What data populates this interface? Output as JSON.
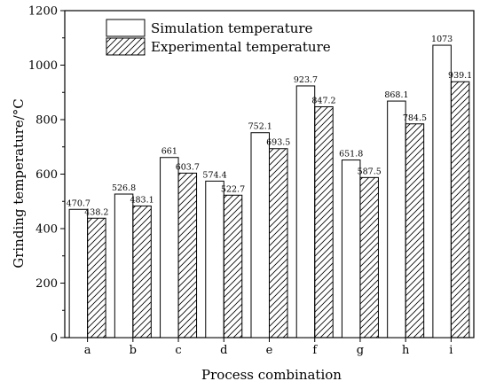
{
  "chart_data": {
    "type": "bar",
    "title": "",
    "xlabel": "Process combination",
    "ylabel": "Grinding temperature/°C",
    "categories": [
      "a",
      "b",
      "c",
      "d",
      "e",
      "f",
      "g",
      "h",
      "i"
    ],
    "ylim": [
      0,
      1200
    ],
    "yticks": [
      0,
      200,
      400,
      600,
      800,
      1000,
      1200
    ],
    "legend_position": "top-left",
    "grid": false,
    "series": [
      {
        "name": "Simulation temperature",
        "fill": "plain",
        "values": [
          470.7,
          526.8,
          661,
          574.4,
          752.1,
          923.7,
          651.8,
          868.1,
          1073
        ],
        "labels": [
          "470.7",
          "526.8",
          "661",
          "574.4",
          "752.1",
          "923.7",
          "651.8",
          "868.1",
          "1073"
        ]
      },
      {
        "name": "Experimental temperature",
        "fill": "hatched",
        "values": [
          438.2,
          483.1,
          603.7,
          522.7,
          693.5,
          847.2,
          587.5,
          784.5,
          939.1
        ],
        "labels": [
          "438.2",
          "483.1",
          "603.7",
          "522.7",
          "693.5",
          "847.2",
          "587.5",
          "784.5",
          "939.1"
        ]
      }
    ]
  }
}
